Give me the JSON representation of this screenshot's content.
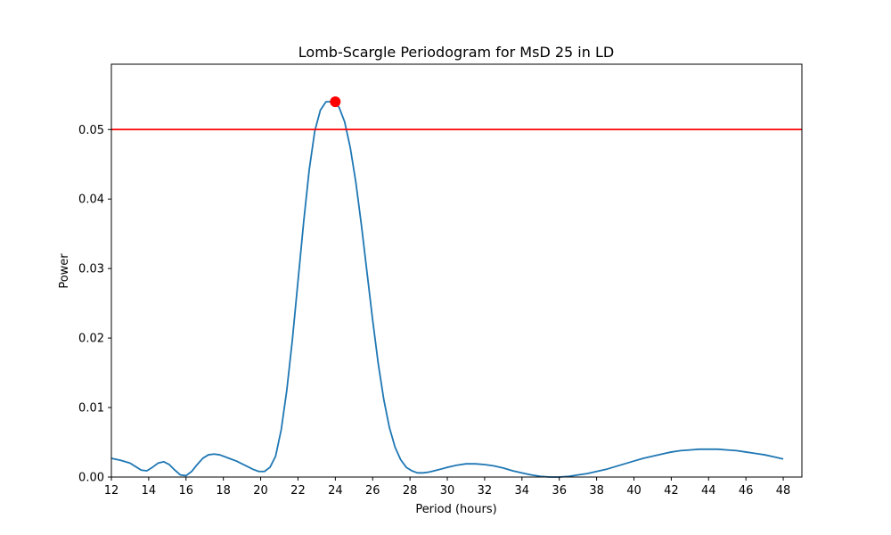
{
  "chart_data": {
    "type": "line",
    "title": "Lomb-Scargle Periodogram for MsD 25 in LD",
    "xlabel": "Period (hours)",
    "ylabel": "Power",
    "xlim": [
      12,
      49
    ],
    "ylim": [
      0,
      0.0594
    ],
    "xticks": [
      12,
      14,
      16,
      18,
      20,
      22,
      24,
      26,
      28,
      30,
      32,
      34,
      36,
      38,
      40,
      42,
      44,
      46,
      48
    ],
    "yticks": [
      0.0,
      0.01,
      0.02,
      0.03,
      0.04,
      0.05
    ],
    "ytick_labels": [
      "0.00",
      "0.01",
      "0.02",
      "0.03",
      "0.04",
      "0.05"
    ],
    "grid": false,
    "line_color": "#1f77b4",
    "series": [
      {
        "x": [
          12.0,
          12.5,
          13.0,
          13.3,
          13.6,
          13.9,
          14.2,
          14.5,
          14.8,
          15.1,
          15.4,
          15.7,
          16.0,
          16.3,
          16.6,
          16.9,
          17.2,
          17.5,
          17.8,
          18.1,
          18.4,
          18.7,
          19.0,
          19.3,
          19.6,
          19.9,
          20.2,
          20.5,
          20.8,
          21.1,
          21.4,
          21.7,
          22.0,
          22.3,
          22.6,
          22.9,
          23.2,
          23.5,
          23.8,
          24.0,
          24.2,
          24.5,
          24.8,
          25.1,
          25.4,
          25.7,
          26.0,
          26.3,
          26.6,
          26.9,
          27.2,
          27.5,
          27.8,
          28.1,
          28.4,
          28.7,
          29.0,
          29.3,
          29.6,
          30.0,
          30.5,
          31.0,
          31.5,
          32.0,
          32.5,
          33.0,
          33.5,
          34.0,
          34.5,
          35.0,
          35.5,
          36.0,
          36.5,
          37.0,
          37.5,
          38.0,
          38.5,
          39.0,
          39.5,
          40.0,
          40.5,
          41.0,
          41.5,
          42.0,
          42.5,
          43.0,
          43.5,
          44.0,
          44.5,
          45.0,
          45.5,
          46.0,
          46.5,
          47.0,
          47.5,
          48.0
        ],
        "y": [
          0.0027,
          0.0024,
          0.002,
          0.0015,
          0.001,
          0.0009,
          0.0014,
          0.002,
          0.0022,
          0.0018,
          0.001,
          0.0003,
          0.0002,
          0.0008,
          0.0018,
          0.0027,
          0.0032,
          0.0033,
          0.0032,
          0.0029,
          0.0026,
          0.0023,
          0.0019,
          0.0015,
          0.0011,
          0.0008,
          0.0008,
          0.0014,
          0.003,
          0.0068,
          0.0125,
          0.0198,
          0.0282,
          0.0366,
          0.0442,
          0.0498,
          0.0528,
          0.054,
          0.054,
          0.0538,
          0.0532,
          0.0511,
          0.0474,
          0.0424,
          0.0362,
          0.0294,
          0.0226,
          0.0163,
          0.0111,
          0.0071,
          0.0043,
          0.0025,
          0.0014,
          0.0009,
          0.0006,
          0.0006,
          0.0007,
          0.0009,
          0.0011,
          0.0014,
          0.0017,
          0.0019,
          0.0019,
          0.0018,
          0.0016,
          0.0013,
          0.0009,
          0.0006,
          0.0003,
          0.0001,
          0.0,
          0.0,
          0.0001,
          0.0003,
          0.0005,
          0.0008,
          0.0011,
          0.0015,
          0.0019,
          0.0023,
          0.0027,
          0.003,
          0.0033,
          0.0036,
          0.0038,
          0.0039,
          0.004,
          0.004,
          0.004,
          0.0039,
          0.0038,
          0.0036,
          0.0034,
          0.0032,
          0.0029,
          0.0026
        ]
      }
    ],
    "threshold": {
      "y": 0.05,
      "color": "#ff0000"
    },
    "peak_marker": {
      "x": 24.0,
      "y": 0.054,
      "color": "#ff0000"
    }
  }
}
